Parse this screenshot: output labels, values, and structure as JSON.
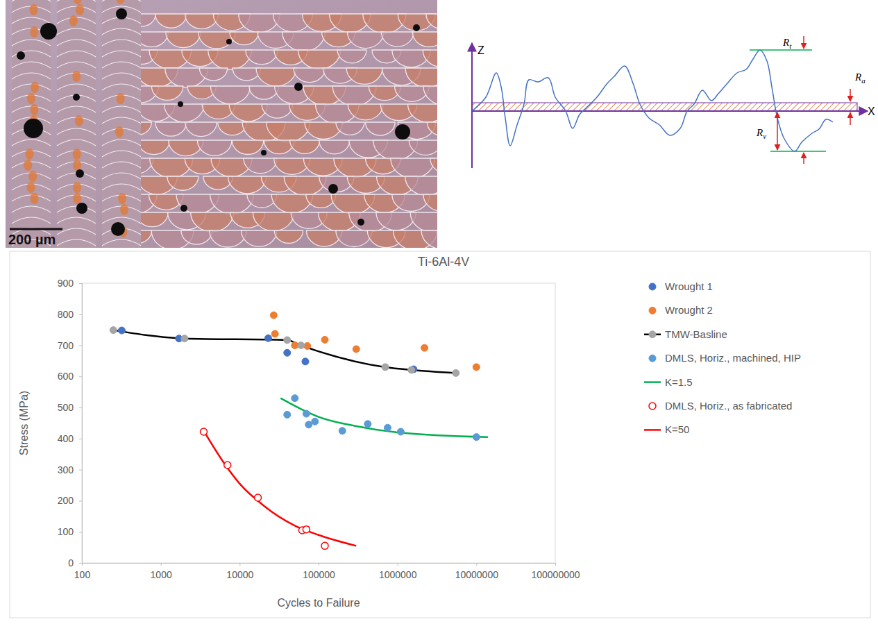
{
  "chart_data": {
    "type": "scatter",
    "title": "Ti-6Al-4V",
    "x_label": "Cycles to Failure",
    "y_label": "Stress (MPa)",
    "log": "x",
    "grid": false,
    "legend": "right",
    "xlim": [
      100,
      100000000
    ],
    "xticks": [
      100,
      1000,
      10000,
      100000,
      1000000,
      10000000,
      100000000
    ],
    "ylim": [
      0,
      900
    ],
    "yticks": [
      0,
      100,
      200,
      300,
      400,
      500,
      600,
      700,
      800,
      900
    ],
    "series": [
      {
        "name": "Wrought 1",
        "type": "scatter",
        "color": "#4472c4",
        "marker": "circle",
        "x": [
          320,
          1700,
          23000,
          40000,
          68000,
          1600000
        ],
        "values": [
          748,
          722,
          723,
          676,
          648,
          623
        ]
      },
      {
        "name": "Wrought 2",
        "type": "scatter",
        "color": "#ed7d31",
        "marker": "circle",
        "x": [
          27000,
          28000,
          50000,
          72000,
          120000,
          300000,
          2200000,
          10000000
        ],
        "values": [
          797,
          737,
          700,
          698,
          718,
          688,
          692,
          630
        ]
      },
      {
        "name": "TMW-Basline",
        "type": "line",
        "color": "#000000",
        "marker": "circle",
        "line_style": "solid",
        "x": [
          250,
          2000,
          40000,
          60000,
          700000,
          1500000,
          5500000
        ],
        "values": [
          749,
          722,
          717,
          700,
          630,
          621,
          611
        ]
      },
      {
        "name": "DMLS, Horiz., machined, HIP",
        "type": "scatter",
        "color": "#5b9bd5",
        "marker": "circle",
        "x": [
          40000,
          50000,
          70000,
          75000,
          90000,
          200000,
          420000,
          750000,
          1100000,
          10000000
        ],
        "values": [
          477,
          530,
          480,
          445,
          455,
          425,
          447,
          435,
          422,
          405
        ]
      },
      {
        "name": "K=1.5",
        "type": "line",
        "color": "#00b050",
        "marker": "none",
        "line_style": "solid",
        "x": [
          33000,
          60000,
          100000,
          300000,
          1000000,
          14000000
        ],
        "values": [
          530,
          495,
          470,
          440,
          420,
          405
        ]
      },
      {
        "name": "DMLS, Horiz., as fabricated",
        "type": "scatter",
        "color": "#ff0000",
        "marker": "open-circle",
        "x": [
          3500,
          7000,
          17000,
          62000,
          70000,
          120000
        ],
        "values": [
          422,
          315,
          210,
          105,
          108,
          55
        ]
      },
      {
        "name": "K=50",
        "type": "line",
        "color": "#ff0000",
        "marker": "none",
        "line_style": "solid",
        "x": [
          3500,
          6000,
          10000,
          20000,
          50000,
          100000,
          300000
        ],
        "values": [
          425,
          330,
          255,
          185,
          120,
          90,
          55
        ]
      }
    ]
  },
  "micrograph": {
    "scale_bar_label": "200 µm"
  },
  "roughness_diagram": {
    "axis_labels": [
      "Z",
      "X"
    ],
    "labels": [
      {
        "symbol": "R",
        "subscript": "t"
      },
      {
        "symbol": "R",
        "subscript": "a"
      },
      {
        "symbol": "R",
        "subscript": "v"
      }
    ]
  }
}
